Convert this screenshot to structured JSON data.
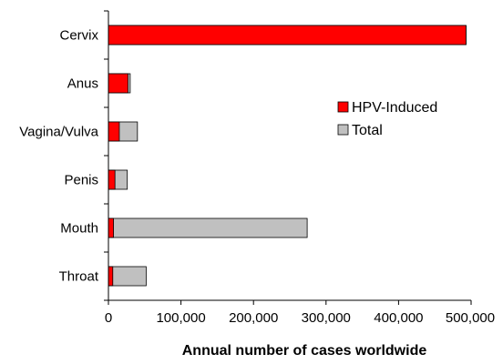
{
  "chart_data": {
    "type": "bar",
    "orientation": "horizontal",
    "stacked": "overlay",
    "categories": [
      "Cervix",
      "Anus",
      "Vagina/Vulva",
      "Penis",
      "Mouth",
      "Throat"
    ],
    "series": [
      {
        "name": "HPV-Induced",
        "color": "#ff0000",
        "values": [
          493000,
          27000,
          15000,
          9000,
          7000,
          6000
        ]
      },
      {
        "name": "Total",
        "color": "#c0c0c0",
        "values": [
          493000,
          30000,
          40000,
          26000,
          274000,
          52000
        ]
      }
    ],
    "xlabel": "Annual number of cases worldwide",
    "ylabel": "",
    "xlim": [
      0,
      500000
    ],
    "xticks": [
      0,
      100000,
      200000,
      300000,
      400000,
      500000
    ],
    "xtick_labels": [
      "0",
      "100,000",
      "200,000",
      "300,000",
      "400,000",
      "500,000"
    ],
    "grid": false,
    "legend": {
      "placement": "center-right",
      "entries": [
        "HPV-Induced",
        "Total"
      ]
    }
  }
}
